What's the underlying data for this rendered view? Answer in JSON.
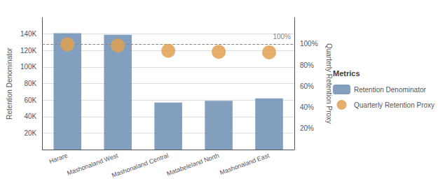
{
  "chart_data": {
    "type": "bar",
    "categories": [
      "Harare",
      "Mashonaland West",
      "Mashonaland Central",
      "Matabeleland North",
      "Mashonaland East"
    ],
    "series": [
      {
        "name": "Retention Denominator",
        "type": "bar",
        "color": "#6d8eb4",
        "values": [
          141000,
          139000,
          57000,
          59000,
          62000
        ]
      },
      {
        "name": "Quarterly Retention Proxy",
        "type": "scatter",
        "color": "#e0a050",
        "axis": "y2",
        "values": [
          0.995,
          0.985,
          0.935,
          0.925,
          0.92
        ]
      }
    ],
    "ylabel": "Retention Denominator",
    "y2label": "Quarterly Retention Proxy",
    "ylim": [
      0,
      160000
    ],
    "yticks": [
      {
        "value": 0,
        "label": null
      },
      {
        "value": 20000,
        "label": "20K"
      },
      {
        "value": 40000,
        "label": "40K"
      },
      {
        "value": 60000,
        "label": "60K"
      },
      {
        "value": 80000,
        "label": "80K"
      },
      {
        "value": 100000,
        "label": "100K"
      },
      {
        "value": 120000,
        "label": "120K"
      },
      {
        "value": 140000,
        "label": "140K"
      }
    ],
    "y2lim": [
      0,
      1.25
    ],
    "y2ticks": [
      {
        "value": 0,
        "label": null
      },
      {
        "value": 0.2,
        "label": "20%"
      },
      {
        "value": 0.4,
        "label": "40%"
      },
      {
        "value": 0.6,
        "label": "60%"
      },
      {
        "value": 0.8,
        "label": "80%"
      },
      {
        "value": 1.0,
        "label": "100%"
      }
    ],
    "annotations": [
      {
        "text": "100%",
        "y": 1.0,
        "axis": "y2",
        "line_style": "dashed",
        "color": "#888888"
      }
    ],
    "legend": "right",
    "legend_title": "Metrics",
    "grid": true
  }
}
